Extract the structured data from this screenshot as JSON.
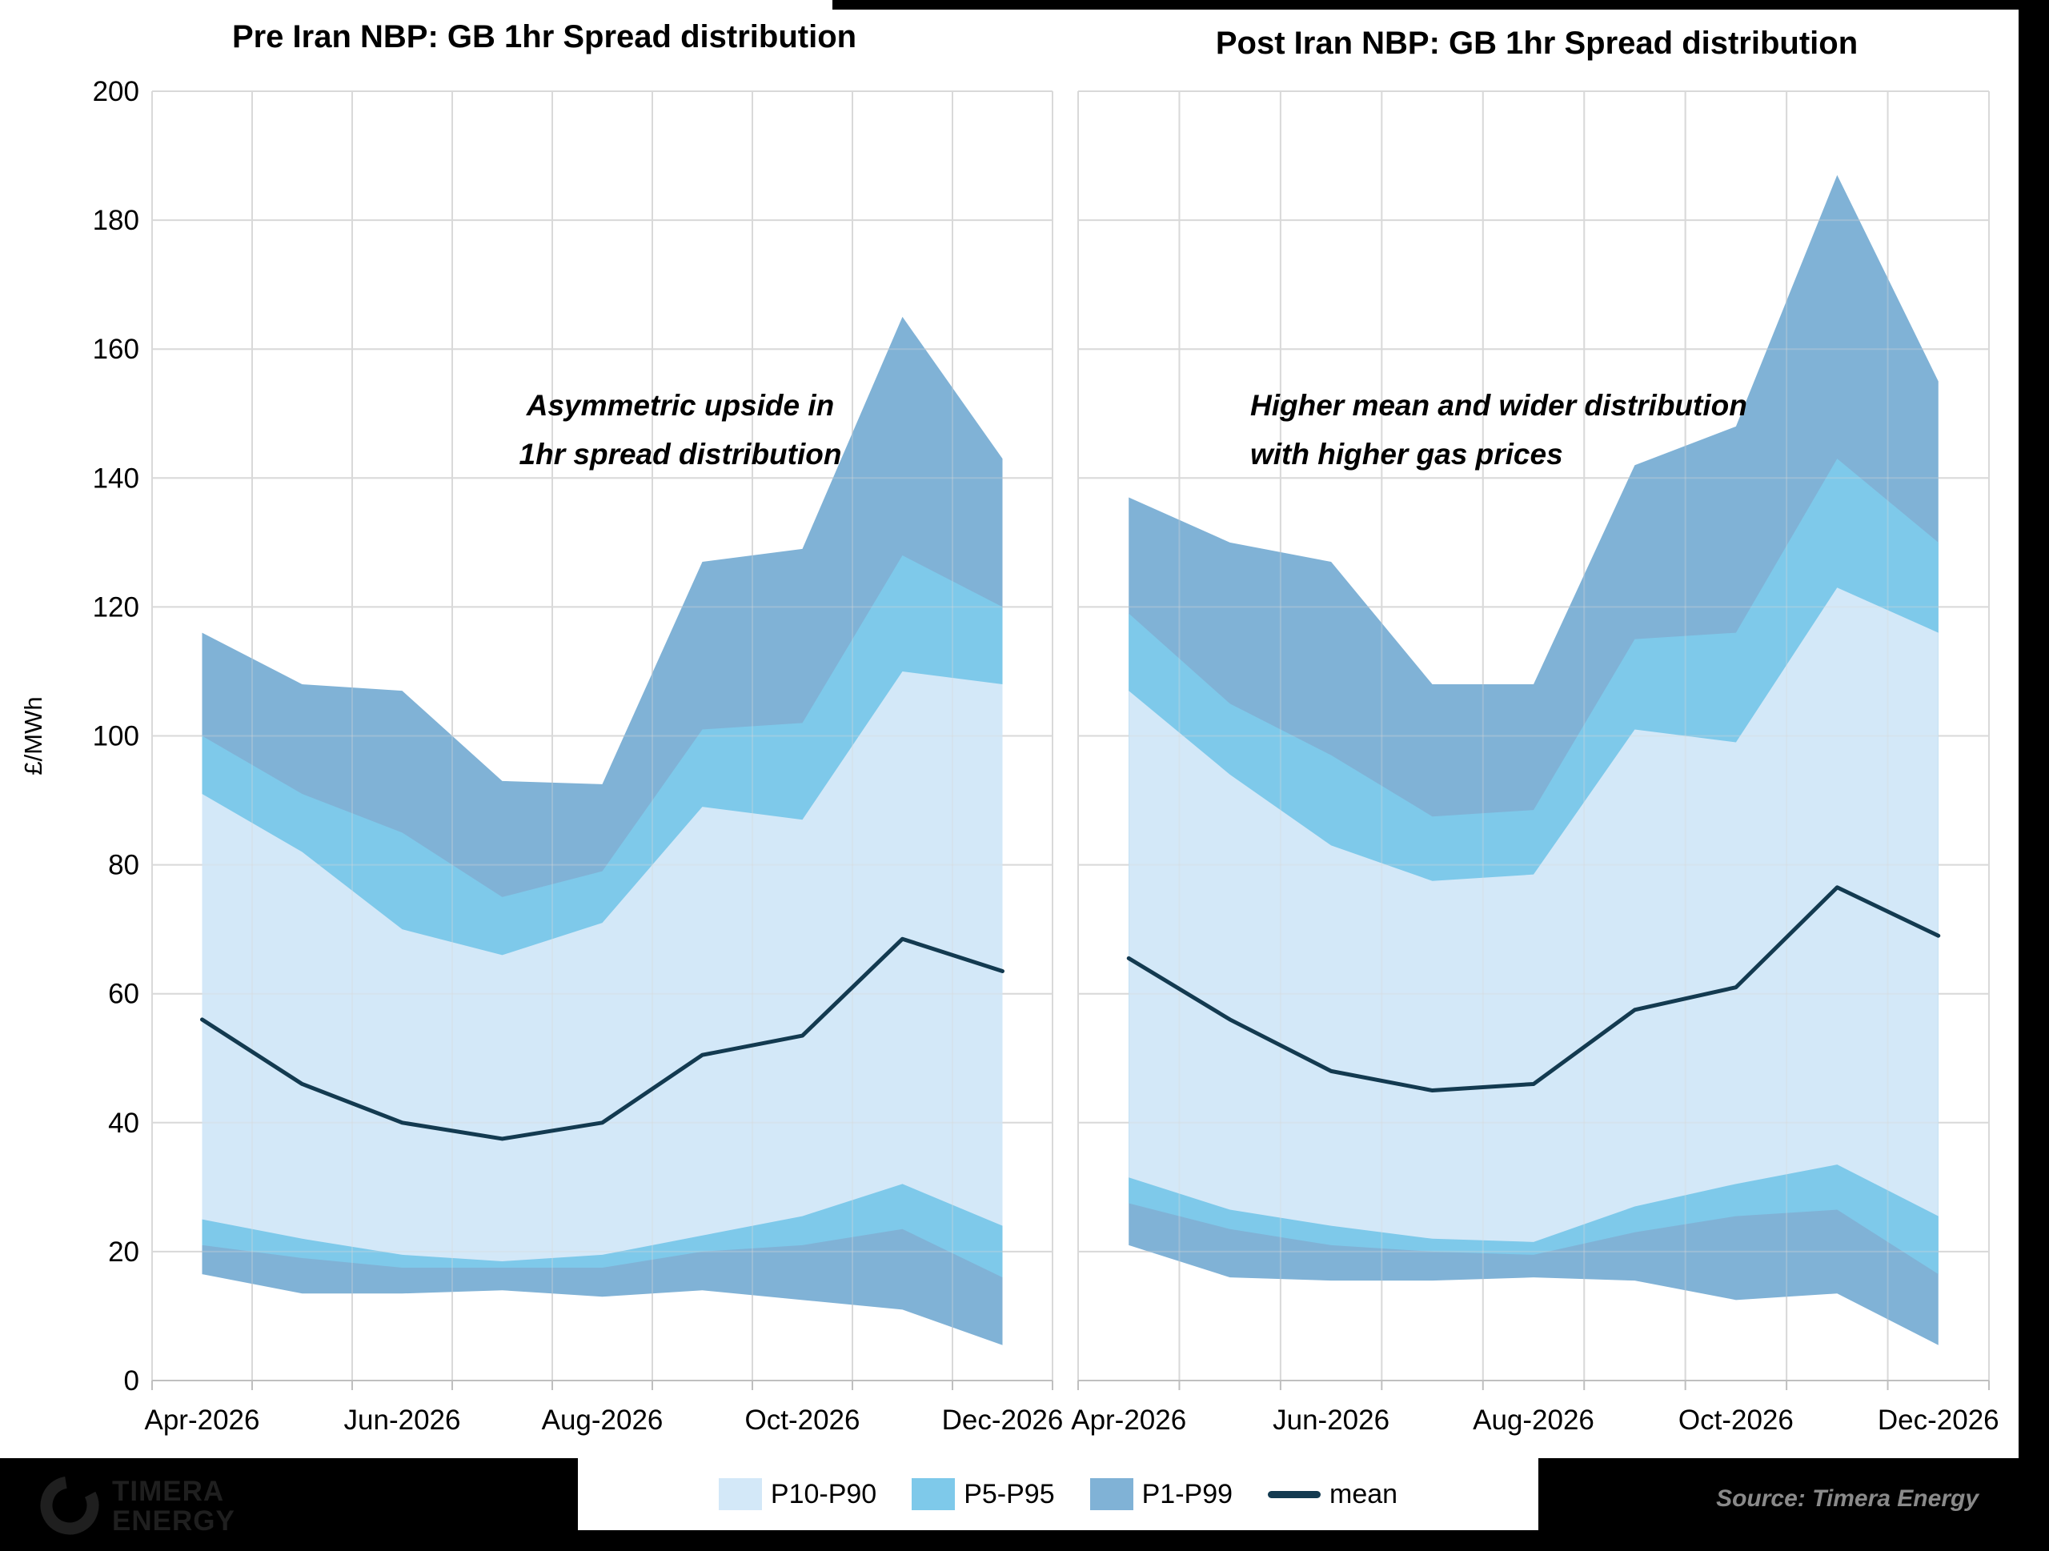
{
  "header": {
    "left_title": "Pre Iran NBP: GB 1hr Spread distribution",
    "right_title": "Post Iran NBP: GB 1hr Spread distribution"
  },
  "colors": {
    "band_p10_p90": "#d3e8f8",
    "band_p5_p95": "#7ec9ea",
    "band_p1_p99": "#80b2d6",
    "mean_line": "#133a50",
    "gridline": "#d9d9d9",
    "axis_line": "#bfbfbf",
    "source_text": "#8a8a8a",
    "footer_background": "#000000"
  },
  "legend": {
    "items": [
      {
        "label": "P10-P90",
        "swatch": "band_p10_p90",
        "kind": "box"
      },
      {
        "label": "P5-P95",
        "swatch": "band_p5_p95",
        "kind": "box"
      },
      {
        "label": "P1-P99",
        "swatch": "band_p1_p99",
        "kind": "box"
      },
      {
        "label": "mean",
        "swatch": "mean_line",
        "kind": "line"
      }
    ]
  },
  "footer": {
    "logo_line1": "TIMERA",
    "logo_line2": "ENERGY",
    "source": "Source: Timera Energy"
  },
  "chart_data": [
    {
      "type": "area",
      "title": "Pre Iran NBP: GB 1hr Spread distribution",
      "ylabel": "£/MWh",
      "ylim": [
        0,
        200
      ],
      "ytick_step": 20,
      "grid": true,
      "x": [
        "Apr-2026",
        "May-2026",
        "Jun-2026",
        "Jul-2026",
        "Aug-2026",
        "Sep-2026",
        "Oct-2026",
        "Nov-2026",
        "Dec-2026"
      ],
      "x_tick_labels": [
        "Apr-2026",
        "Jun-2026",
        "Aug-2026",
        "Oct-2026",
        "Dec-2026"
      ],
      "annotation": [
        "Asymmetric upside in",
        "1hr spread distribution"
      ],
      "series": [
        {
          "name": "P99",
          "values": [
            116,
            108,
            107,
            93,
            92.5,
            127,
            129,
            165,
            143
          ]
        },
        {
          "name": "P95",
          "values": [
            100,
            91,
            85,
            75,
            79,
            101,
            102,
            128,
            120
          ]
        },
        {
          "name": "P90",
          "values": [
            91,
            82,
            70,
            66,
            71,
            89,
            87,
            110,
            108
          ]
        },
        {
          "name": "mean",
          "values": [
            56,
            46,
            40,
            37.5,
            40,
            50.5,
            53.5,
            68.5,
            63.5
          ]
        },
        {
          "name": "P10",
          "values": [
            25,
            22,
            19.5,
            18.5,
            19.5,
            22.5,
            25.5,
            30.5,
            24
          ]
        },
        {
          "name": "P5",
          "values": [
            21,
            19,
            17.5,
            17.5,
            17.5,
            20,
            21,
            23.5,
            16
          ]
        },
        {
          "name": "P1",
          "values": [
            16.5,
            13.5,
            13.5,
            14,
            13,
            14,
            12.5,
            11,
            5.5
          ]
        }
      ],
      "bands": [
        {
          "label": "P1-P99",
          "upper": "P99",
          "lower": "P1",
          "color_key": "band_p1_p99"
        },
        {
          "label": "P5-P95",
          "upper": "P95",
          "lower": "P5",
          "color_key": "band_p5_p95"
        },
        {
          "label": "P10-P90",
          "upper": "P90",
          "lower": "P10",
          "color_key": "band_p10_p90"
        }
      ]
    },
    {
      "type": "area",
      "title": "Post Iran NBP: GB 1hr Spread distribution",
      "ylabel": "£/MWh",
      "ylim": [
        0,
        200
      ],
      "ytick_step": 20,
      "grid": true,
      "x": [
        "Apr-2026",
        "May-2026",
        "Jun-2026",
        "Jul-2026",
        "Aug-2026",
        "Sep-2026",
        "Oct-2026",
        "Nov-2026",
        "Dec-2026"
      ],
      "x_tick_labels": [
        "Apr-2026",
        "Jun-2026",
        "Aug-2026",
        "Oct-2026",
        "Dec-2026"
      ],
      "annotation": [
        "Higher mean and wider distribution",
        "with higher gas prices"
      ],
      "series": [
        {
          "name": "P99",
          "values": [
            137,
            130,
            127,
            108,
            108,
            142,
            148,
            187,
            155
          ]
        },
        {
          "name": "P95",
          "values": [
            119,
            105,
            97,
            87.5,
            88.5,
            115,
            116,
            143,
            130
          ]
        },
        {
          "name": "P90",
          "values": [
            107,
            94,
            83,
            77.5,
            78.5,
            101,
            99,
            123,
            116
          ]
        },
        {
          "name": "mean",
          "values": [
            65.5,
            56,
            48,
            45,
            46,
            57.5,
            61,
            76.5,
            69
          ]
        },
        {
          "name": "P10",
          "values": [
            31.5,
            26.5,
            24,
            22,
            21.5,
            27,
            30.5,
            33.5,
            25.5
          ]
        },
        {
          "name": "P5",
          "values": [
            27.5,
            23.5,
            21,
            20,
            19.5,
            23,
            25.5,
            26.5,
            16.5
          ]
        },
        {
          "name": "P1",
          "values": [
            21,
            16,
            15.5,
            15.5,
            16,
            15.5,
            12.5,
            13.5,
            5.5
          ]
        }
      ],
      "bands": [
        {
          "label": "P1-P99",
          "upper": "P99",
          "lower": "P1",
          "color_key": "band_p1_p99"
        },
        {
          "label": "P5-P95",
          "upper": "P95",
          "lower": "P5",
          "color_key": "band_p5_p95"
        },
        {
          "label": "P10-P90",
          "upper": "P90",
          "lower": "P10",
          "color_key": "band_p10_p90"
        }
      ]
    }
  ]
}
